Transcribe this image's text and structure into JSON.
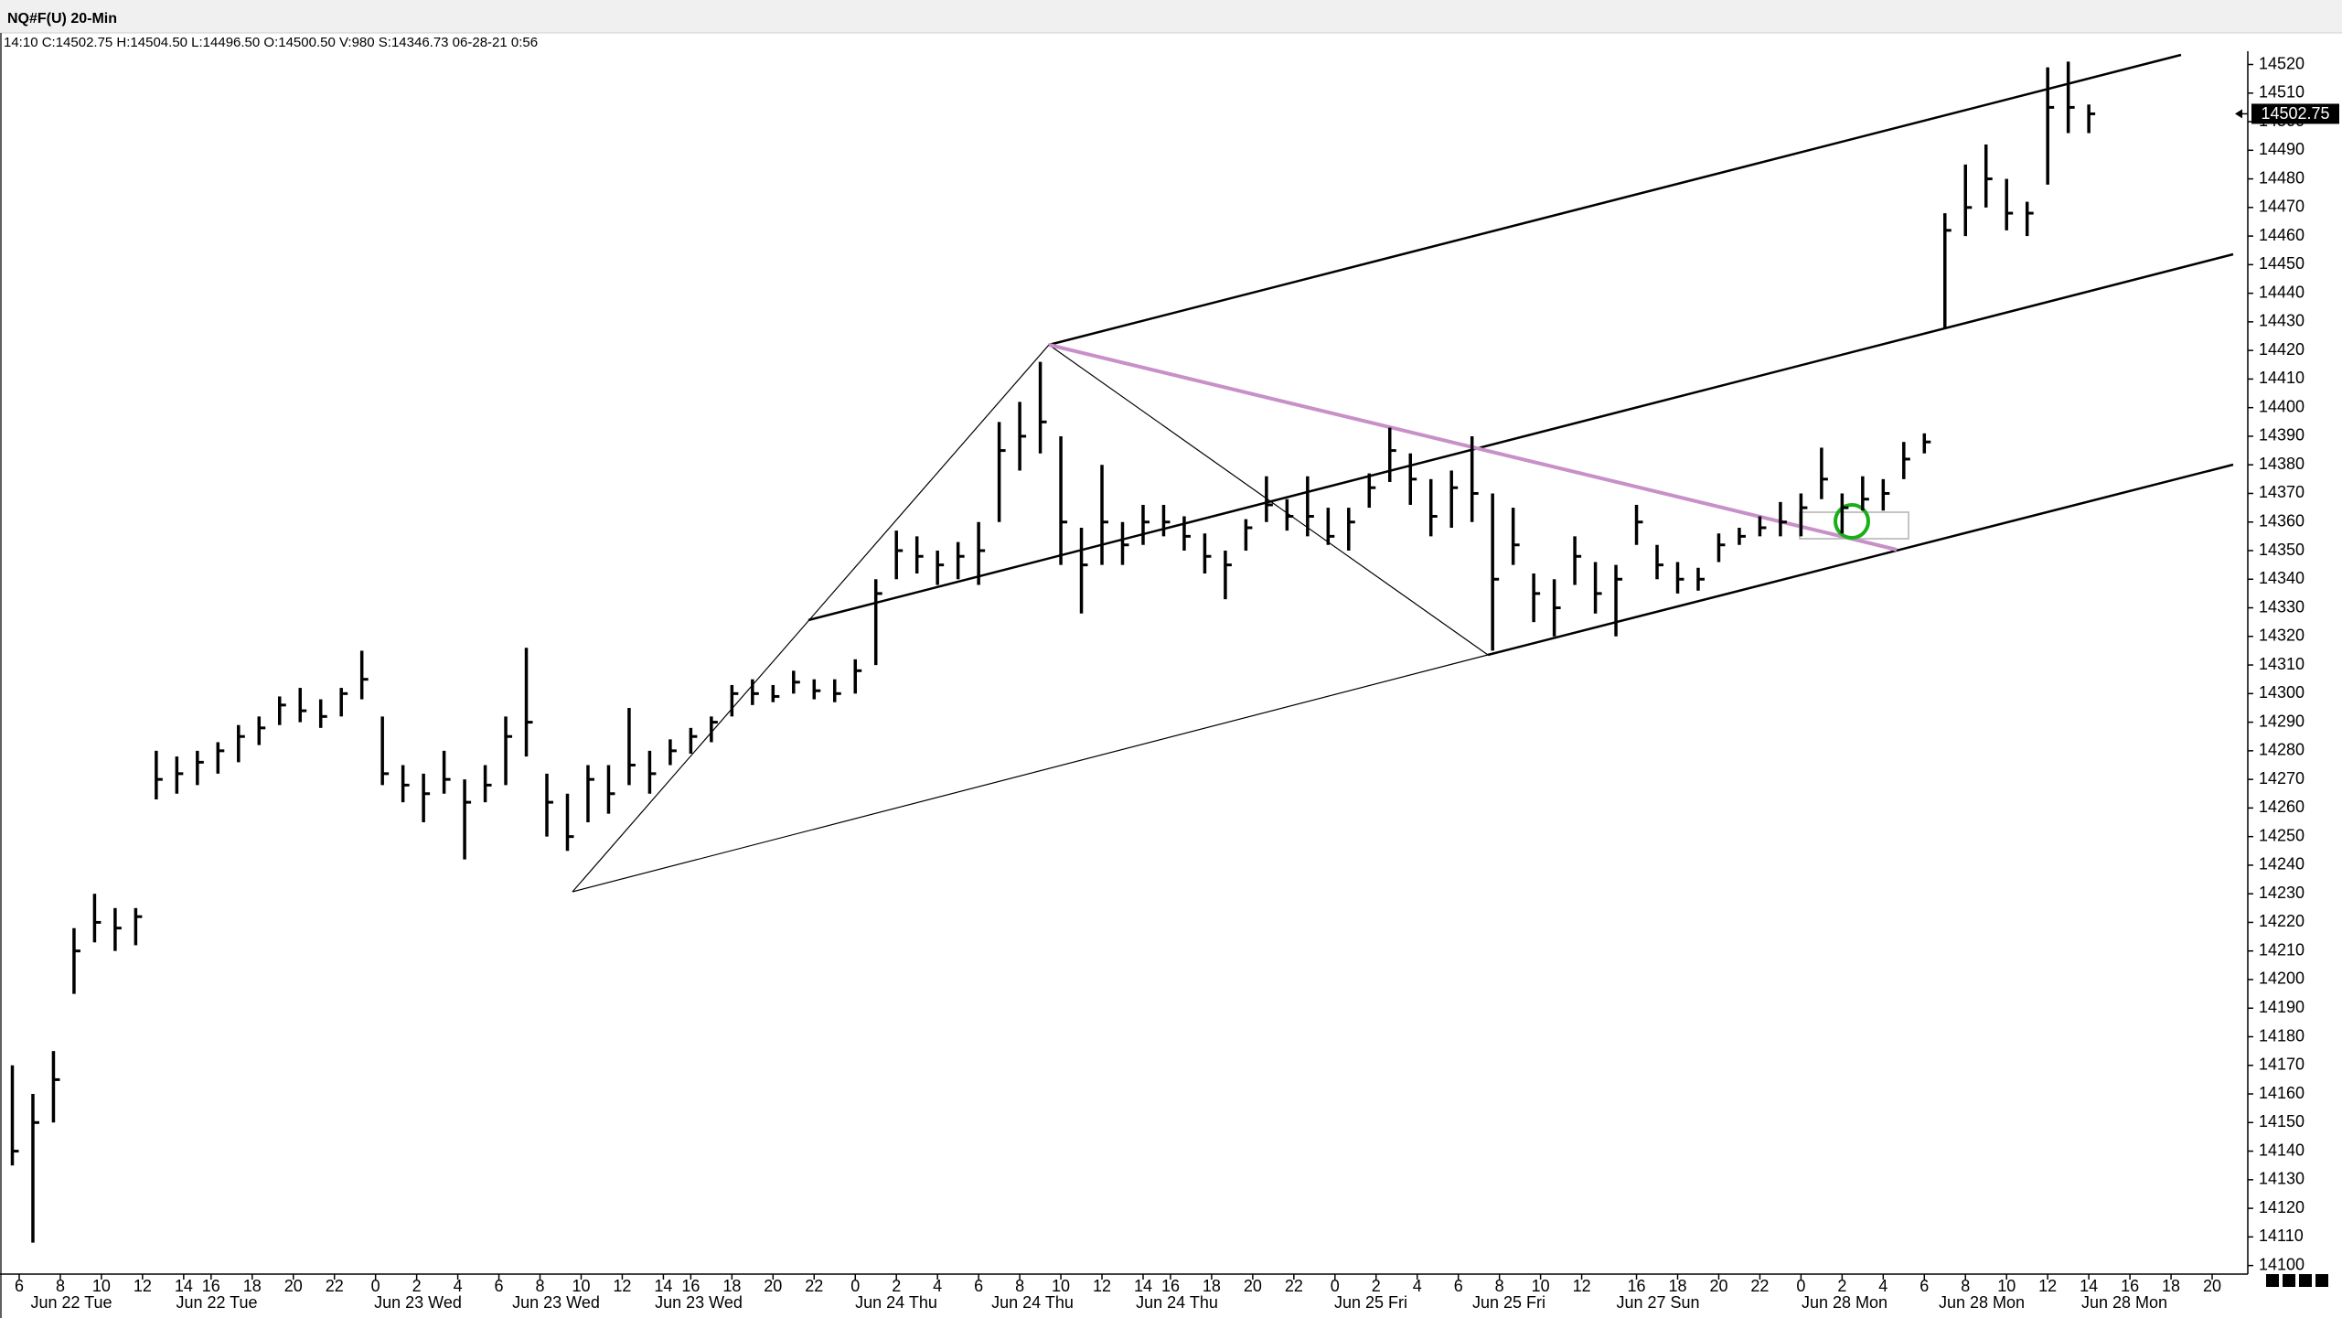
{
  "chart_data": {
    "type": "hlc",
    "title": "NQ#F(U) 20-Min",
    "info": "14:10 C:14502.75 H:14504.50 L:14496.50 O:14500.50 V:980 S:14346.73 06-28-21 0:56",
    "color": "#000000",
    "grid": false,
    "xlim": [
      -2,
      324
    ],
    "ylim": [
      14097,
      14524
    ],
    "yticks": [
      14100,
      14110,
      14120,
      14130,
      14140,
      14150,
      14160,
      14170,
      14180,
      14190,
      14200,
      14210,
      14220,
      14230,
      14240,
      14250,
      14260,
      14270,
      14280,
      14290,
      14300,
      14310,
      14320,
      14330,
      14340,
      14350,
      14360,
      14370,
      14380,
      14390,
      14400,
      14410,
      14420,
      14430,
      14440,
      14450,
      14460,
      14470,
      14480,
      14490,
      14500,
      14510,
      14520
    ],
    "xticks": [
      {
        "value": 0,
        "label": "6"
      },
      {
        "value": 6,
        "label": "8"
      },
      {
        "value": 12,
        "label": "10"
      },
      {
        "value": 18,
        "label": "12"
      },
      {
        "value": 24,
        "label": "14"
      },
      {
        "value": 28,
        "label": "16"
      },
      {
        "value": 34,
        "label": "18"
      },
      {
        "value": 40,
        "label": "20"
      },
      {
        "value": 46,
        "label": "22"
      },
      {
        "value": 52,
        "label": "0"
      },
      {
        "value": 58,
        "label": "2"
      },
      {
        "value": 64,
        "label": "4"
      },
      {
        "value": 70,
        "label": "6"
      },
      {
        "value": 76,
        "label": "8"
      },
      {
        "value": 82,
        "label": "10"
      },
      {
        "value": 88,
        "label": "12"
      },
      {
        "value": 94,
        "label": "14"
      },
      {
        "value": 98,
        "label": "16"
      },
      {
        "value": 104,
        "label": "18"
      },
      {
        "value": 110,
        "label": "20"
      },
      {
        "value": 116,
        "label": "22"
      },
      {
        "value": 122,
        "label": "0"
      },
      {
        "value": 128,
        "label": "2"
      },
      {
        "value": 134,
        "label": "4"
      },
      {
        "value": 140,
        "label": "6"
      },
      {
        "value": 146,
        "label": "8"
      },
      {
        "value": 152,
        "label": "10"
      },
      {
        "value": 158,
        "label": "12"
      },
      {
        "value": 164,
        "label": "14"
      },
      {
        "value": 168,
        "label": "16"
      },
      {
        "value": 174,
        "label": "18"
      },
      {
        "value": 180,
        "label": "20"
      },
      {
        "value": 186,
        "label": "22"
      },
      {
        "value": 192,
        "label": "0"
      },
      {
        "value": 198,
        "label": "2"
      },
      {
        "value": 204,
        "label": "4"
      },
      {
        "value": 210,
        "label": "6"
      },
      {
        "value": 216,
        "label": "8"
      },
      {
        "value": 222,
        "label": "10"
      },
      {
        "value": 228,
        "label": "12"
      },
      {
        "value": 236,
        "label": "16"
      },
      {
        "value": 242,
        "label": "18"
      },
      {
        "value": 248,
        "label": "20"
      },
      {
        "value": 254,
        "label": "22"
      },
      {
        "value": 260,
        "label": "0"
      },
      {
        "value": 266,
        "label": "2"
      },
      {
        "value": 272,
        "label": "4"
      },
      {
        "value": 278,
        "label": "6"
      },
      {
        "value": 284,
        "label": "8"
      },
      {
        "value": 290,
        "label": "10"
      },
      {
        "value": 296,
        "label": "12"
      },
      {
        "value": 302,
        "label": "14"
      },
      {
        "value": 308,
        "label": "16"
      },
      {
        "value": 314,
        "label": "18"
      },
      {
        "value": 320,
        "label": "20"
      }
    ],
    "day_labels": [
      "Jun 22 Tue",
      "Jun 22 Tue",
      "Jun 23 Wed",
      "Jun 23 Wed",
      "Jun 23 Wed",
      "Jun 24 Thu",
      "Jun 24 Thu",
      "Jun 24 Thu",
      "Jun 25 Fri",
      "Jun 25 Fri",
      "Jun 27 Sun",
      "Jun 28 Mon",
      "Jun 28 Mon",
      "Jun 28 Mon"
    ],
    "x": [
      -1,
      2,
      5,
      8,
      11,
      14,
      17,
      20,
      23,
      26,
      29,
      32,
      35,
      38,
      41,
      44,
      47,
      50,
      53,
      56,
      59,
      62,
      65,
      68,
      71,
      74,
      77,
      80,
      83,
      86,
      89,
      92,
      95,
      98,
      101,
      104,
      107,
      110,
      113,
      116,
      119,
      122,
      125,
      128,
      131,
      134,
      137,
      140,
      143,
      146,
      149,
      152,
      155,
      158,
      161,
      164,
      167,
      170,
      173,
      176,
      179,
      182,
      185,
      188,
      191,
      194,
      197,
      200,
      203,
      206,
      209,
      212,
      215,
      218,
      221,
      224,
      227,
      230,
      233,
      236,
      239,
      242,
      245,
      248,
      251,
      254,
      257,
      260,
      263,
      266,
      269,
      272,
      275,
      278,
      281,
      284,
      287,
      290,
      293,
      296,
      299,
      302
    ],
    "high": [
      14170,
      14160,
      14175,
      14218,
      14230,
      14225,
      14225,
      14280,
      14278,
      14280,
      14283,
      14289,
      14292,
      14299,
      14302,
      14298,
      14302,
      14315,
      14292,
      14275,
      14272,
      14280,
      14270,
      14275,
      14292,
      14316,
      14272,
      14265,
      14275,
      14275,
      14295,
      14280,
      14284,
      14288,
      14292,
      14303,
      14305,
      14303,
      14308,
      14305,
      14305,
      14312,
      14340,
      14357,
      14355,
      14350,
      14353,
      14360,
      14395,
      14402,
      14416,
      14390,
      14358,
      14380,
      14360,
      14366,
      14366,
      14362,
      14356,
      14350,
      14361,
      14376,
      14368,
      14376,
      14365,
      14365,
      14377,
      14393,
      14384,
      14375,
      14378,
      14390,
      14370,
      14365,
      14342,
      14340,
      14355,
      14346,
      14345,
      14366,
      14352,
      14346,
      14344,
      14356,
      14358,
      14362,
      14367,
      14370,
      14386,
      14370,
      14376,
      14375,
      14388,
      14391,
      14468,
      14485,
      14492,
      14480,
      14472,
      14519,
      14521,
      14506
    ],
    "low": [
      14135,
      14108,
      14150,
      14195,
      14213,
      14210,
      14212,
      14263,
      14265,
      14268,
      14272,
      14276,
      14282,
      14289,
      14290,
      14288,
      14292,
      14298,
      14268,
      14262,
      14255,
      14265,
      14242,
      14262,
      14268,
      14278,
      14250,
      14245,
      14255,
      14258,
      14268,
      14265,
      14275,
      14279,
      14283,
      14292,
      14296,
      14297,
      14300,
      14298,
      14297,
      14300,
      14310,
      14340,
      14342,
      14338,
      14340,
      14338,
      14360,
      14378,
      14384,
      14345,
      14328,
      14345,
      14345,
      14352,
      14355,
      14350,
      14342,
      14333,
      14350,
      14360,
      14357,
      14355,
      14352,
      14350,
      14365,
      14374,
      14366,
      14355,
      14358,
      14360,
      14315,
      14345,
      14325,
      14320,
      14338,
      14328,
      14320,
      14352,
      14340,
      14335,
      14336,
      14346,
      14352,
      14355,
      14355,
      14355,
      14368,
      14356,
      14364,
      14364,
      14375,
      14384,
      14428,
      14460,
      14470,
      14462,
      14460,
      14478,
      14496,
      14496
    ],
    "close": [
      14140,
      14150,
      14165,
      14210,
      14220,
      14218,
      14222,
      14270,
      14272,
      14276,
      14280,
      14285,
      14288,
      14296,
      14294,
      14292,
      14300,
      14305,
      14272,
      14268,
      14265,
      14270,
      14262,
      14268,
      14285,
      14290,
      14262,
      14250,
      14270,
      14265,
      14275,
      14272,
      14280,
      14285,
      14290,
      14300,
      14300,
      14299,
      14304,
      14301,
      14300,
      14308,
      14335,
      14350,
      14348,
      14345,
      14348,
      14350,
      14385,
      14390,
      14395,
      14360,
      14345,
      14360,
      14352,
      14360,
      14360,
      14355,
      14348,
      14345,
      14358,
      14366,
      14362,
      14362,
      14355,
      14360,
      14372,
      14385,
      14375,
      14362,
      14372,
      14370,
      14340,
      14352,
      14335,
      14330,
      14348,
      14335,
      14340,
      14360,
      14345,
      14340,
      14340,
      14352,
      14355,
      14358,
      14360,
      14365,
      14375,
      14365,
      14368,
      14370,
      14382,
      14388,
      14462,
      14470,
      14480,
      14468,
      14468,
      14505,
      14505,
      14502.75
    ]
  }
}
